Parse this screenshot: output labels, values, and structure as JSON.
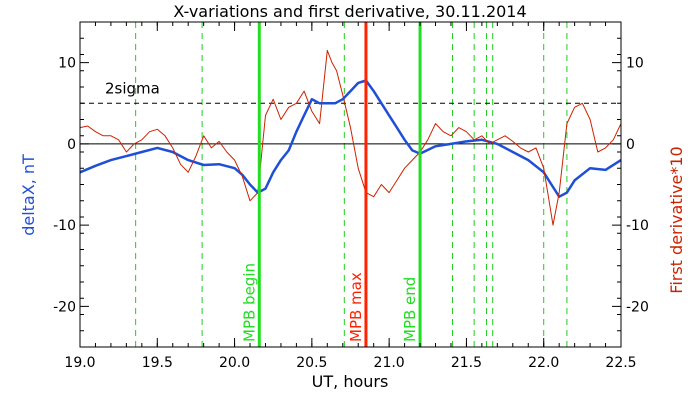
{
  "chart_data": {
    "type": "line",
    "title": "X-variations and first derivative, 30.11.2014",
    "xlabel": "UT, hours",
    "ylabel_left": "deltaX, nT",
    "ylabel_right": "First derivative*10",
    "xlim": [
      19.0,
      22.5
    ],
    "ylim": [
      -25,
      15
    ],
    "x_ticks": [
      "19.0",
      "19.5",
      "20.0",
      "20.5",
      "21.0",
      "21.5",
      "22.0",
      "22.5"
    ],
    "y_ticks_left": [
      "10",
      "0",
      "-10",
      "-20"
    ],
    "y_ticks_right": [
      "10",
      "0",
      "-10",
      "-20"
    ],
    "y_tick_values": [
      10,
      0,
      -10,
      -20
    ],
    "threshold": {
      "label": "2sigma",
      "value": 5
    },
    "zero_line": 0,
    "colors": {
      "deltaX": "#1f4fd6",
      "derivative": "#cc2200",
      "mpb_edges": "#22dd22",
      "mpb_max": "#ff2200",
      "events": "#22cc22"
    },
    "vertical_markers": [
      {
        "label": "MPB begin",
        "x": 20.16,
        "color": "#22dd22"
      },
      {
        "label": "MPB max",
        "x": 20.85,
        "color": "#ff2200"
      },
      {
        "label": "MPB end",
        "x": 21.2,
        "color": "#22dd22"
      }
    ],
    "event_lines_x": [
      19.36,
      19.79,
      20.71,
      21.41,
      21.55,
      21.63,
      21.67,
      22.0,
      22.15
    ],
    "series": [
      {
        "name": "deltaX, nT",
        "x": [
          19.0,
          19.1,
          19.2,
          19.3,
          19.4,
          19.5,
          19.6,
          19.7,
          19.8,
          19.9,
          20.0,
          20.05,
          20.1,
          20.15,
          20.2,
          20.25,
          20.3,
          20.35,
          20.4,
          20.45,
          20.5,
          20.55,
          20.6,
          20.65,
          20.7,
          20.75,
          20.8,
          20.85,
          20.9,
          20.95,
          21.0,
          21.05,
          21.1,
          21.15,
          21.2,
          21.3,
          21.4,
          21.5,
          21.6,
          21.7,
          21.8,
          21.9,
          22.0,
          22.05,
          22.1,
          22.15,
          22.2,
          22.3,
          22.4,
          22.5
        ],
        "values": [
          -3.5,
          -2.7,
          -2.0,
          -1.5,
          -1.0,
          -0.5,
          -1.0,
          -2.0,
          -2.6,
          -2.5,
          -3.0,
          -3.8,
          -5.0,
          -6.0,
          -5.5,
          -3.5,
          -2.0,
          -0.8,
          1.5,
          3.5,
          5.5,
          5.0,
          5.0,
          5.0,
          5.5,
          6.5,
          7.5,
          7.8,
          6.5,
          5.0,
          3.5,
          2.0,
          0.5,
          -0.8,
          -1.2,
          -0.3,
          0.0,
          0.3,
          0.5,
          0.0,
          -1.0,
          -2.0,
          -3.5,
          -5.0,
          -6.5,
          -6.0,
          -4.5,
          -3.0,
          -3.2,
          -2.0
        ]
      },
      {
        "name": "First derivative*10",
        "x": [
          19.0,
          19.05,
          19.1,
          19.15,
          19.2,
          19.25,
          19.3,
          19.35,
          19.4,
          19.45,
          19.5,
          19.55,
          19.6,
          19.65,
          19.7,
          19.75,
          19.8,
          19.85,
          19.9,
          19.95,
          20.0,
          20.05,
          20.1,
          20.15,
          20.2,
          20.25,
          20.3,
          20.35,
          20.4,
          20.45,
          20.5,
          20.55,
          20.6,
          20.63,
          20.66,
          20.7,
          20.75,
          20.8,
          20.85,
          20.9,
          20.95,
          21.0,
          21.05,
          21.1,
          21.15,
          21.2,
          21.25,
          21.3,
          21.35,
          21.4,
          21.45,
          21.5,
          21.55,
          21.6,
          21.65,
          21.7,
          21.75,
          21.8,
          21.85,
          21.9,
          21.95,
          22.0,
          22.03,
          22.06,
          22.1,
          22.15,
          22.2,
          22.25,
          22.3,
          22.35,
          22.4,
          22.45,
          22.5
        ],
        "values": [
          2.0,
          2.2,
          1.5,
          1.0,
          1.0,
          0.5,
          -1.0,
          0.0,
          0.5,
          1.5,
          1.8,
          1.0,
          -0.5,
          -2.5,
          -3.5,
          -1.5,
          1.0,
          -0.5,
          0.3,
          -1.0,
          -2.0,
          -4.0,
          -7.0,
          -6.0,
          3.5,
          5.5,
          3.0,
          4.5,
          5.0,
          6.5,
          4.0,
          2.5,
          11.5,
          10.0,
          9.0,
          6.0,
          2.0,
          -3.0,
          -6.0,
          -6.5,
          -5.0,
          -6.0,
          -4.5,
          -3.0,
          -2.0,
          -1.0,
          0.5,
          2.5,
          1.5,
          1.0,
          2.0,
          1.5,
          0.5,
          1.0,
          0.0,
          0.5,
          1.0,
          0.3,
          -0.5,
          -1.0,
          -0.5,
          -3.0,
          -6.5,
          -10.0,
          -6.0,
          2.5,
          4.5,
          5.0,
          3.0,
          -1.0,
          -0.5,
          0.5,
          2.5
        ]
      }
    ]
  }
}
